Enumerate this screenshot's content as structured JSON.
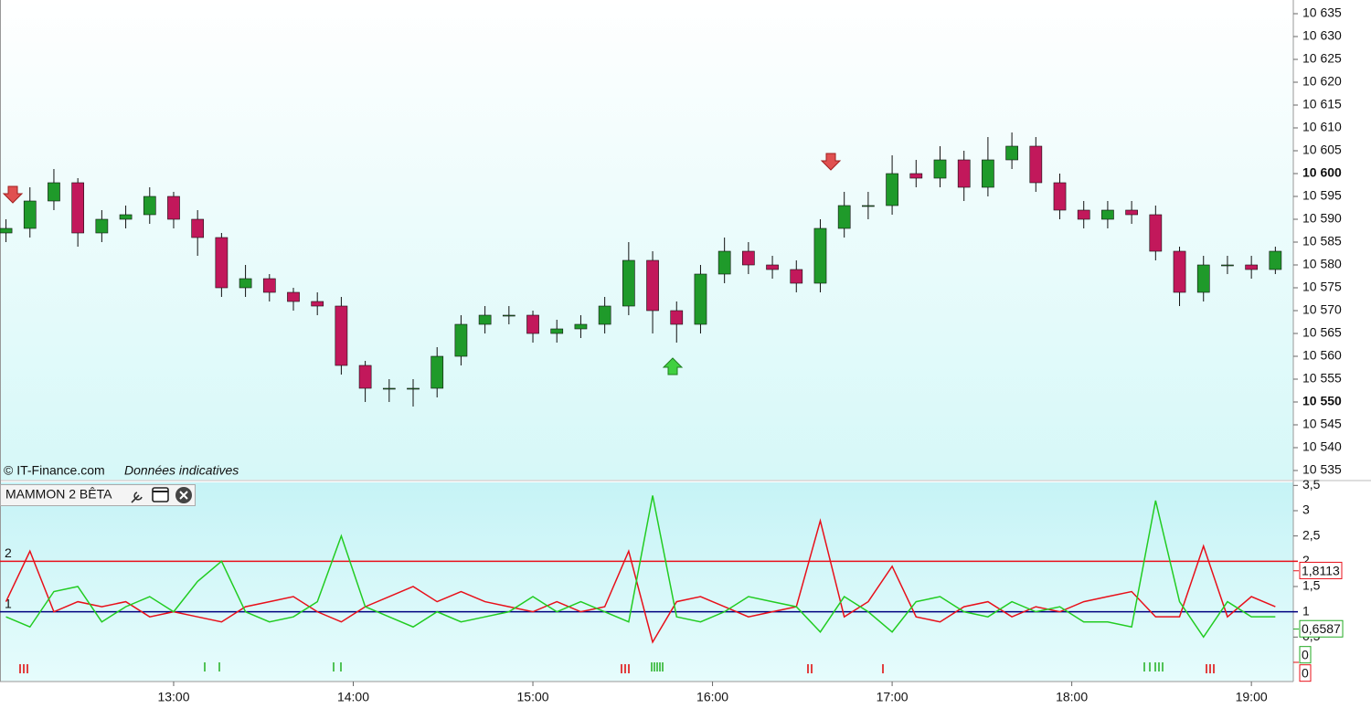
{
  "watermark": "© IT-Finance.com",
  "watermark_note": "Données indicatives",
  "chart_data": [
    {
      "type": "candlestick",
      "x": [
        "12:04",
        "12:12",
        "12:20",
        "12:28",
        "12:36",
        "12:44",
        "12:52",
        "13:00",
        "13:08",
        "13:16",
        "13:24",
        "13:32",
        "13:40",
        "13:48",
        "13:56",
        "14:04",
        "14:12",
        "14:20",
        "14:28",
        "14:36",
        "14:44",
        "14:52",
        "15:00",
        "15:08",
        "15:16",
        "15:24",
        "15:32",
        "15:40",
        "15:48",
        "15:56",
        "16:04",
        "16:12",
        "16:20",
        "16:28",
        "16:36",
        "16:44",
        "16:52",
        "17:00",
        "17:08",
        "17:16",
        "17:24",
        "17:32",
        "17:40",
        "17:48",
        "17:56",
        "18:04",
        "18:12",
        "18:20",
        "18:28",
        "18:36",
        "18:44",
        "18:52",
        "19:00",
        "19:08"
      ],
      "open": [
        10587,
        10588,
        10594,
        10598,
        10587,
        10590,
        10591,
        10595,
        10590,
        10586,
        10575,
        10577,
        10574,
        10572,
        10571,
        10558,
        10553,
        10553,
        10553,
        10560,
        10567,
        10569,
        10569,
        10565,
        10566,
        10567,
        10571,
        10581,
        10570,
        10567,
        10578,
        10583,
        10580,
        10579,
        10576,
        10588,
        10593,
        10593,
        10600,
        10599,
        10603,
        10597,
        10603,
        10606,
        10598,
        10592,
        10590,
        10592,
        10591,
        10583,
        10574,
        10580,
        10580,
        10579
      ],
      "high": [
        10590,
        10597,
        10601,
        10599,
        10592,
        10593,
        10597,
        10596,
        10592,
        10587,
        10580,
        10578,
        10575,
        10574,
        10573,
        10559,
        10555,
        10555,
        10562,
        10569,
        10571,
        10571,
        10570,
        10568,
        10569,
        10573,
        10585,
        10583,
        10572,
        10580,
        10586,
        10585,
        10582,
        10581,
        10590,
        10596,
        10596,
        10604,
        10603,
        10606,
        10605,
        10608,
        10609,
        10608,
        10600,
        10594,
        10594,
        10594,
        10593,
        10584,
        10582,
        10582,
        10582,
        10584
      ],
      "low": [
        10585,
        10586,
        10592,
        10584,
        10585,
        10588,
        10589,
        10588,
        10582,
        10573,
        10573,
        10572,
        10570,
        10569,
        10556,
        10550,
        10550,
        10549,
        10551,
        10558,
        10565,
        10567,
        10563,
        10563,
        10564,
        10565,
        10569,
        10565,
        10563,
        10565,
        10576,
        10578,
        10577,
        10574,
        10574,
        10586,
        10590,
        10591,
        10597,
        10597,
        10594,
        10595,
        10601,
        10596,
        10590,
        10588,
        10588,
        10589,
        10581,
        10571,
        10572,
        10578,
        10577,
        10578
      ],
      "close": [
        10588,
        10594,
        10598,
        10587,
        10590,
        10591,
        10595,
        10590,
        10586,
        10575,
        10577,
        10574,
        10572,
        10571,
        10558,
        10553,
        10553,
        10553,
        10560,
        10567,
        10569,
        10569,
        10565,
        10566,
        10567,
        10571,
        10581,
        10570,
        10567,
        10578,
        10583,
        10580,
        10579,
        10576,
        10588,
        10593,
        10593,
        10600,
        10599,
        10603,
        10597,
        10603,
        10606,
        10598,
        10592,
        10590,
        10592,
        10591,
        10583,
        10574,
        10580,
        10580,
        10579,
        10583
      ],
      "up_color": "#1f9a2a",
      "down_color": "#c2185b",
      "xlim": [
        "12:02",
        "19:14"
      ],
      "ylim": [
        10533,
        10638
      ],
      "yticks": [
        {
          "value": 10635,
          "label": "10 635"
        },
        {
          "value": 10630,
          "label": "10 630"
        },
        {
          "value": 10625,
          "label": "10 625"
        },
        {
          "value": 10620,
          "label": "10 620"
        },
        {
          "value": 10615,
          "label": "10 615"
        },
        {
          "value": 10610,
          "label": "10 610"
        },
        {
          "value": 10605,
          "label": "10 605"
        },
        {
          "value": 10600,
          "label": "10 600",
          "bold": true
        },
        {
          "value": 10595,
          "label": "10 595"
        },
        {
          "value": 10590,
          "label": "10 590"
        },
        {
          "value": 10585,
          "label": "10 585"
        },
        {
          "value": 10580,
          "label": "10 580"
        },
        {
          "value": 10575,
          "label": "10 575"
        },
        {
          "value": 10570,
          "label": "10 570"
        },
        {
          "value": 10565,
          "label": "10 565"
        },
        {
          "value": 10560,
          "label": "10 560"
        },
        {
          "value": 10555,
          "label": "10 555"
        },
        {
          "value": 10550,
          "label": "10 550",
          "bold": true
        },
        {
          "value": 10545,
          "label": "10 545"
        },
        {
          "value": 10540,
          "label": "10 540"
        },
        {
          "value": 10535,
          "label": "10 535"
        }
      ]
    },
    {
      "type": "line",
      "title": "MAMMON 2 BÊTA",
      "x": [
        "12:04",
        "12:12",
        "12:20",
        "12:28",
        "12:36",
        "12:44",
        "12:52",
        "13:00",
        "13:08",
        "13:16",
        "13:24",
        "13:32",
        "13:40",
        "13:48",
        "13:56",
        "14:04",
        "14:12",
        "14:20",
        "14:28",
        "14:36",
        "14:44",
        "14:52",
        "15:00",
        "15:08",
        "15:16",
        "15:24",
        "15:32",
        "15:40",
        "15:48",
        "15:56",
        "16:04",
        "16:12",
        "16:20",
        "16:28",
        "16:36",
        "16:44",
        "16:52",
        "17:00",
        "17:08",
        "17:16",
        "17:24",
        "17:32",
        "17:40",
        "17:48",
        "17:56",
        "18:04",
        "18:12",
        "18:20",
        "18:28",
        "18:36",
        "18:44",
        "18:52",
        "19:00",
        "19:08"
      ],
      "series": [
        {
          "color": "#e8101a",
          "values": [
            1.2,
            2.2,
            1.0,
            1.2,
            1.1,
            1.2,
            0.9,
            1.0,
            0.9,
            0.8,
            1.1,
            1.2,
            1.3,
            1.0,
            0.8,
            1.1,
            1.3,
            1.5,
            1.2,
            1.4,
            1.2,
            1.1,
            1.0,
            1.2,
            1.0,
            1.1,
            2.2,
            0.4,
            1.2,
            1.3,
            1.1,
            0.9,
            1.0,
            1.1,
            2.8,
            0.9,
            1.2,
            1.9,
            0.9,
            0.8,
            1.1,
            1.2,
            0.9,
            1.1,
            1.0,
            1.2,
            1.3,
            1.4,
            0.9,
            0.9,
            2.3,
            0.9,
            1.3,
            1.1
          ]
        },
        {
          "color": "#22cc22",
          "values": [
            0.9,
            0.7,
            1.4,
            1.5,
            0.8,
            1.1,
            1.3,
            1.0,
            1.6,
            2.0,
            1.0,
            0.8,
            0.9,
            1.2,
            2.5,
            1.1,
            0.9,
            0.7,
            1.0,
            0.8,
            0.9,
            1.0,
            1.3,
            1.0,
            1.2,
            1.0,
            0.8,
            3.3,
            0.9,
            0.8,
            1.0,
            1.3,
            1.2,
            1.1,
            0.6,
            1.3,
            1.0,
            0.6,
            1.2,
            1.3,
            1.0,
            0.9,
            1.2,
            1.0,
            1.1,
            0.8,
            0.8,
            0.7,
            3.2,
            1.2,
            0.5,
            1.2,
            0.9,
            0.9
          ]
        }
      ],
      "levels": [
        {
          "value": 2,
          "color": "#e8101a"
        },
        {
          "value": 1,
          "color": "#000080"
        }
      ],
      "last_values": [
        {
          "value": 1.8113,
          "label": "1,8113",
          "color": "#e8101a"
        },
        {
          "value": 0.6587,
          "label": "0,6587",
          "color": "#22aa22"
        },
        {
          "value": 0,
          "label": "0",
          "color": "#22aa22"
        },
        {
          "value": 0,
          "label": "0",
          "color": "#e8101a"
        }
      ],
      "xlim": [
        "12:02",
        "19:14"
      ],
      "xticks": [
        "13:00",
        "14:00",
        "15:00",
        "16:00",
        "17:00",
        "18:00",
        "19:00"
      ],
      "ylim": [
        -0.38,
        3.56
      ],
      "yticks": [
        {
          "value": 3.5,
          "label": "3,5"
        },
        3,
        {
          "value": 2.5,
          "label": "2,5"
        },
        2,
        {
          "value": 1.5,
          "label": "1,5"
        },
        1,
        {
          "value": 0.5,
          "label": "0,5"
        }
      ]
    }
  ]
}
